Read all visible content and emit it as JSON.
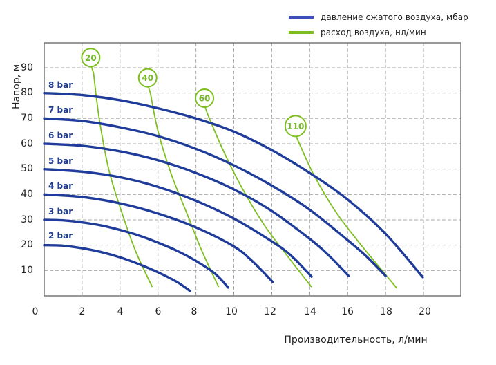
{
  "chart_data": {
    "type": "line",
    "title": "",
    "xlabel": "Производительность, л/мин",
    "ylabel": "Напор, м",
    "xlim": [
      0,
      22
    ],
    "ylim": [
      0,
      100
    ],
    "x_ticks": [
      "0",
      "2",
      "4",
      "6",
      "8",
      "10",
      "12",
      "14",
      "16",
      "18",
      "20"
    ],
    "y_ticks": [
      "10",
      "20",
      "30",
      "40",
      "50",
      "60",
      "70",
      "80",
      "90"
    ],
    "grid": true,
    "legend_position": "top-right",
    "legend": [
      {
        "label": "давление сжатого воздуха, мбар",
        "color": "#3a4fbf"
      },
      {
        "label": "расход воздуха, нл/мин",
        "color": "#7dbf1f"
      }
    ],
    "series": [
      {
        "name": "2 bar",
        "group": "pressure",
        "color": "#1f3c9a",
        "x": [
          0,
          1,
          2,
          3,
          4,
          5,
          6,
          7,
          7.7
        ],
        "y": [
          20,
          19.8,
          18.8,
          17.3,
          15.2,
          12.5,
          9.3,
          5.5,
          1.9
        ]
      },
      {
        "name": "3 bar",
        "group": "pressure",
        "color": "#1f3c9a",
        "x": [
          0,
          1,
          2,
          3,
          4,
          5,
          6,
          7,
          8,
          9,
          9.7
        ],
        "y": [
          30,
          29.8,
          29,
          27.8,
          26,
          23.8,
          21,
          17.8,
          13.8,
          8.8,
          3.3
        ]
      },
      {
        "name": "4 bar",
        "group": "pressure",
        "color": "#1f3c9a",
        "x": [
          0,
          2,
          4,
          6,
          8,
          10,
          11,
          12.05
        ],
        "y": [
          40,
          39,
          36.5,
          32.5,
          27,
          19.5,
          13.5,
          5.5
        ]
      },
      {
        "name": "5 bar",
        "group": "pressure",
        "color": "#1f3c9a",
        "x": [
          0,
          2,
          4,
          6,
          8,
          10,
          12,
          13,
          14.1
        ],
        "y": [
          50,
          49,
          46.8,
          43,
          37.5,
          30.5,
          21.5,
          16,
          7.6
        ]
      },
      {
        "name": "6 bar",
        "group": "pressure",
        "color": "#1f3c9a",
        "x": [
          0,
          2,
          4,
          6,
          8,
          10,
          12,
          14,
          15,
          16.05
        ],
        "y": [
          60,
          59.2,
          57,
          53.5,
          48.5,
          42,
          33.5,
          22.5,
          16,
          7.9
        ]
      },
      {
        "name": "7 bar",
        "group": "pressure",
        "color": "#1f3c9a",
        "x": [
          0,
          2,
          4,
          6,
          8,
          10,
          12,
          14,
          16,
          17,
          18
        ],
        "y": [
          70,
          69,
          66.5,
          63,
          58,
          51.5,
          43.5,
          34,
          22,
          15.5,
          7.9
        ]
      },
      {
        "name": "8 bar",
        "group": "pressure",
        "color": "#1f3c9a",
        "x": [
          0,
          2,
          4,
          6,
          8,
          10,
          12,
          14,
          16,
          18,
          19.96
        ],
        "y": [
          80,
          79.2,
          77.2,
          74,
          70,
          64.8,
          57.5,
          48.5,
          38,
          24.5,
          7.4
        ]
      },
      {
        "name": "20",
        "group": "airflow",
        "color": "#7dbf1f",
        "x": [
          2.6,
          2.9,
          3.4,
          4.0,
          4.8,
          5.7
        ],
        "y": [
          88,
          70,
          50,
          35,
          18,
          3.5
        ]
      },
      {
        "name": "40",
        "group": "airflow",
        "color": "#7dbf1f",
        "x": [
          5.6,
          6.0,
          6.7,
          7.5,
          8.3,
          9.2
        ],
        "y": [
          80,
          65,
          48,
          33,
          18,
          3.5
        ]
      },
      {
        "name": "60",
        "group": "airflow",
        "color": "#7dbf1f",
        "x": [
          8.6,
          9.4,
          10.4,
          11.6,
          12.9,
          14.1
        ],
        "y": [
          72,
          58,
          43,
          28,
          15,
          3.5
        ]
      },
      {
        "name": "110",
        "group": "airflow",
        "color": "#7dbf1f",
        "x": [
          13.4,
          14.2,
          15.3,
          16.5,
          17.6,
          18.6
        ],
        "y": [
          61,
          48,
          34,
          22,
          12,
          3
        ]
      }
    ]
  },
  "legend": {
    "items": [
      {
        "label": "давление сжатого воздуха, мбар",
        "color": "#3a4fbf"
      },
      {
        "label": "расход воздуха, нл/мин",
        "color": "#7dbf1f"
      }
    ]
  },
  "axes": {
    "xlabel": "Производительность, л/мин",
    "ylabel": "Напор, м",
    "x_ticks": [
      "0",
      "2",
      "4",
      "6",
      "8",
      "10",
      "12",
      "14",
      "16",
      "18",
      "20"
    ],
    "y_ticks": [
      "10",
      "20",
      "30",
      "40",
      "50",
      "60",
      "70",
      "80",
      "90"
    ]
  },
  "series_labels": [
    "8 bar",
    "7 bar",
    "6 bar",
    "5 bar",
    "4 bar",
    "3 bar",
    "2 bar"
  ],
  "flow_labels": [
    "20",
    "40",
    "60",
    "110"
  ],
  "colors": {
    "pressure_line": "#1f3c9a",
    "airflow_line": "#7dbf1f",
    "grid": "#aaaaaa",
    "frame": "#777777",
    "label_text": "#1f3c8f"
  }
}
